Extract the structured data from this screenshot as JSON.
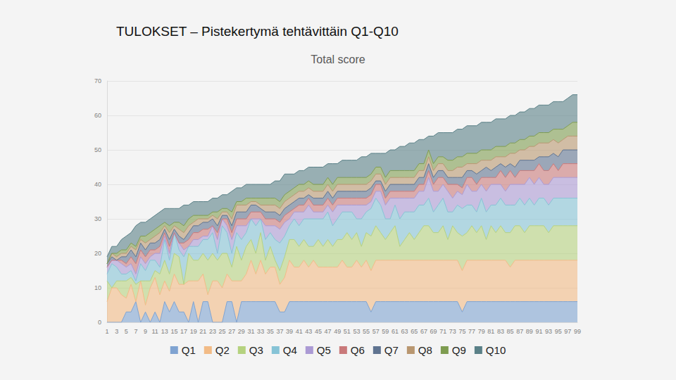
{
  "heading": "TULOKSET – Pistekertymä tehtävittäin Q1-Q10",
  "chart_data": {
    "type": "area",
    "title": "Total score",
    "stacked": true,
    "grid": true,
    "legend": "bottom",
    "categories": [
      "1",
      null,
      "3",
      null,
      "5",
      null,
      "7",
      null,
      "9",
      null,
      "11",
      null,
      "13",
      null,
      "15",
      null,
      "17",
      null,
      "19",
      null,
      "21",
      null,
      "23",
      null,
      "25",
      null,
      "27",
      null,
      "29",
      null,
      "31",
      null,
      "33",
      null,
      "35",
      null,
      "37",
      null,
      "39",
      null,
      "41",
      null,
      "43",
      null,
      "45",
      null,
      "47",
      null,
      "49",
      null,
      "51",
      null,
      "53",
      null,
      "55",
      null,
      "57",
      null,
      "59",
      null,
      "61",
      null,
      "63",
      null,
      "65",
      null,
      "67",
      null,
      "69",
      null,
      "71",
      null,
      "73",
      null,
      "75",
      null,
      "77",
      null,
      "79",
      null,
      "81",
      null,
      "83",
      null,
      "85",
      null,
      "87",
      null,
      "89",
      null,
      "91",
      null,
      "93",
      null,
      "95",
      null,
      "97",
      null,
      "99"
    ],
    "ylim": [
      0,
      70
    ],
    "yticks": [
      0,
      10,
      20,
      30,
      40,
      50,
      60,
      70
    ],
    "series": [
      {
        "name": "Q1",
        "color": "#7fa3d1",
        "values": [
          0,
          0,
          0,
          0,
          3,
          3,
          6,
          0,
          3,
          0,
          3,
          0,
          6,
          3,
          6,
          3,
          3,
          0,
          6,
          0,
          6,
          6,
          0,
          0,
          0,
          6,
          6,
          0,
          6,
          6,
          6,
          6,
          6,
          6,
          6,
          6,
          3,
          3,
          6,
          6,
          6,
          6,
          6,
          6,
          6,
          6,
          6,
          6,
          6,
          6,
          6,
          6,
          6,
          6,
          6,
          3,
          6,
          6,
          6,
          6,
          6,
          6,
          6,
          6,
          6,
          6,
          6,
          6,
          6,
          6,
          6,
          6,
          6,
          6,
          3,
          6,
          6,
          6,
          6,
          6,
          6,
          6,
          6,
          6,
          6,
          6,
          6,
          6,
          6,
          6,
          6,
          6,
          6,
          6,
          6,
          6,
          6,
          6,
          6
        ]
      },
      {
        "name": "Q2",
        "color": "#f2bb86",
        "values": [
          6,
          10,
          10,
          8,
          4,
          8,
          0,
          12,
          2,
          10,
          10,
          8,
          6,
          6,
          8,
          8,
          8,
          12,
          6,
          12,
          8,
          2,
          12,
          12,
          10,
          8,
          6,
          12,
          6,
          8,
          12,
          8,
          12,
          8,
          10,
          10,
          8,
          10,
          12,
          10,
          10,
          12,
          10,
          12,
          10,
          10,
          10,
          10,
          10,
          12,
          10,
          10,
          12,
          10,
          12,
          12,
          12,
          12,
          12,
          12,
          12,
          12,
          12,
          12,
          12,
          12,
          12,
          12,
          12,
          12,
          12,
          12,
          12,
          12,
          12,
          12,
          12,
          12,
          12,
          12,
          12,
          12,
          12,
          12,
          10,
          12,
          12,
          12,
          12,
          12,
          12,
          12,
          12,
          12,
          12,
          12,
          12,
          12,
          12
        ]
      },
      {
        "name": "Q3",
        "color": "#b5d27f",
        "values": [
          6,
          0,
          2,
          4,
          5,
          2,
          5,
          0,
          7,
          2,
          2,
          6,
          6,
          5,
          6,
          8,
          0,
          8,
          6,
          6,
          6,
          10,
          8,
          6,
          10,
          6,
          4,
          10,
          6,
          8,
          6,
          6,
          8,
          4,
          6,
          2,
          4,
          6,
          6,
          8,
          6,
          6,
          6,
          4,
          8,
          6,
          8,
          6,
          8,
          6,
          10,
          8,
          8,
          6,
          8,
          10,
          10,
          8,
          6,
          8,
          10,
          4,
          6,
          8,
          6,
          8,
          10,
          10,
          8,
          8,
          10,
          6,
          10,
          8,
          10,
          8,
          10,
          8,
          10,
          6,
          10,
          8,
          10,
          8,
          10,
          10,
          10,
          8,
          10,
          10,
          10,
          10,
          8,
          10,
          10,
          10,
          10,
          10,
          10
        ]
      },
      {
        "name": "Q4",
        "color": "#86c3d6",
        "values": [
          2,
          7,
          4,
          2,
          2,
          2,
          1,
          5,
          3,
          6,
          3,
          2,
          6,
          4,
          6,
          2,
          8,
          2,
          4,
          4,
          4,
          6,
          6,
          2,
          8,
          6,
          4,
          4,
          6,
          4,
          6,
          8,
          4,
          6,
          4,
          6,
          8,
          6,
          4,
          6,
          6,
          6,
          8,
          8,
          6,
          8,
          8,
          6,
          6,
          8,
          6,
          8,
          4,
          8,
          6,
          8,
          8,
          8,
          6,
          4,
          6,
          8,
          8,
          6,
          8,
          8,
          6,
          8,
          6,
          8,
          8,
          8,
          4,
          8,
          8,
          8,
          6,
          6,
          8,
          8,
          6,
          8,
          8,
          8,
          8,
          6,
          8,
          8,
          8,
          6,
          8,
          8,
          8,
          8,
          8,
          8,
          8,
          8,
          8
        ]
      },
      {
        "name": "Q5",
        "color": "#ab9ad4",
        "values": [
          2,
          1,
          2,
          3,
          2,
          2,
          2,
          2,
          2,
          1,
          2,
          4,
          1,
          2,
          0,
          2,
          2,
          0,
          2,
          2,
          1,
          1,
          2,
          4,
          2,
          2,
          4,
          2,
          4,
          2,
          0,
          2,
          0,
          4,
          2,
          4,
          4,
          4,
          2,
          2,
          4,
          2,
          4,
          2,
          2,
          2,
          2,
          4,
          4,
          2,
          2,
          2,
          4,
          4,
          2,
          2,
          2,
          4,
          4,
          6,
          2,
          6,
          4,
          4,
          4,
          4,
          4,
          6,
          6,
          4,
          4,
          6,
          4,
          4,
          4,
          6,
          4,
          6,
          4,
          6,
          6,
          6,
          4,
          4,
          6,
          6,
          4,
          6,
          6,
          6,
          6,
          4,
          6,
          6,
          6,
          6,
          6,
          6,
          6
        ]
      },
      {
        "name": "Q6",
        "color": "#c9797a",
        "values": [
          0,
          0,
          0,
          1,
          1,
          2,
          3,
          2,
          2,
          2,
          1,
          2,
          1,
          2,
          0,
          0,
          2,
          2,
          2,
          2,
          2,
          2,
          0,
          2,
          0,
          2,
          2,
          2,
          2,
          2,
          2,
          2,
          2,
          2,
          2,
          2,
          2,
          2,
          2,
          1,
          2,
          2,
          2,
          2,
          2,
          2,
          2,
          2,
          2,
          2,
          2,
          2,
          2,
          2,
          2,
          2,
          2,
          2,
          2,
          2,
          2,
          2,
          2,
          2,
          2,
          2,
          2,
          2,
          2,
          4,
          2,
          2,
          4,
          2,
          2,
          2,
          4,
          2,
          2,
          4,
          2,
          2,
          4,
          4,
          4,
          2,
          4,
          4,
          2,
          4,
          4,
          4,
          4,
          4,
          2,
          4,
          4,
          4,
          4
        ]
      },
      {
        "name": "Q7",
        "color": "#5f7390",
        "values": [
          1,
          1,
          0,
          1,
          2,
          2,
          2,
          2,
          2,
          2,
          2,
          2,
          1,
          2,
          1,
          2,
          1,
          2,
          2,
          2,
          2,
          2,
          2,
          2,
          1,
          1,
          2,
          2,
          2,
          2,
          2,
          2,
          1,
          2,
          2,
          2,
          2,
          2,
          2,
          2,
          2,
          2,
          1,
          2,
          2,
          2,
          2,
          2,
          2,
          2,
          2,
          2,
          2,
          2,
          2,
          2,
          1,
          1,
          2,
          2,
          2,
          2,
          2,
          2,
          2,
          2,
          2,
          2,
          2,
          2,
          2,
          2,
          2,
          2,
          3,
          2,
          2,
          3,
          2,
          3,
          2,
          3,
          2,
          3,
          2,
          3,
          3,
          3,
          3,
          3,
          2,
          4,
          4,
          3,
          4,
          4,
          4,
          4,
          4
        ]
      },
      {
        "name": "Q8",
        "color": "#b99770",
        "values": [
          0,
          1,
          1,
          1,
          1,
          1,
          2,
          1,
          2,
          1,
          2,
          2,
          1,
          2,
          1,
          2,
          2,
          2,
          1,
          2,
          1,
          1,
          1,
          2,
          1,
          1,
          2,
          2,
          2,
          2,
          1,
          1,
          1,
          2,
          2,
          2,
          2,
          2,
          2,
          2,
          2,
          2,
          2,
          2,
          2,
          2,
          2,
          2,
          2,
          2,
          2,
          2,
          2,
          2,
          2,
          2,
          2,
          2,
          2,
          2,
          2,
          2,
          2,
          2,
          2,
          2,
          2,
          2,
          2,
          2,
          2,
          2,
          2,
          3,
          3,
          2,
          2,
          3,
          3,
          2,
          3,
          3,
          2,
          3,
          3,
          4,
          3,
          3,
          4,
          4,
          4,
          4,
          4,
          4,
          4,
          3,
          4,
          4,
          4
        ]
      },
      {
        "name": "Q9",
        "color": "#7e9c50",
        "values": [
          0,
          0,
          1,
          1,
          1,
          1,
          1,
          1,
          2,
          2,
          2,
          2,
          1,
          2,
          1,
          2,
          2,
          2,
          2,
          1,
          1,
          1,
          1,
          2,
          1,
          1,
          2,
          1,
          1,
          2,
          1,
          1,
          2,
          2,
          2,
          2,
          2,
          2,
          2,
          2,
          2,
          2,
          2,
          2,
          2,
          2,
          2,
          2,
          2,
          2,
          2,
          2,
          2,
          2,
          2,
          2,
          2,
          2,
          2,
          2,
          2,
          2,
          2,
          2,
          2,
          2,
          2,
          2,
          2,
          2,
          2,
          3,
          3,
          3,
          3,
          3,
          3,
          3,
          3,
          3,
          3,
          3,
          3,
          3,
          3,
          3,
          3,
          3,
          3,
          3,
          3,
          3,
          3,
          3,
          4,
          3,
          3,
          4,
          4
        ]
      },
      {
        "name": "Q10",
        "color": "#5a8087",
        "values": [
          2,
          2,
          2,
          3,
          4,
          3,
          6,
          4,
          4,
          4,
          4,
          4,
          4,
          5,
          4,
          4,
          6,
          4,
          4,
          4,
          4,
          4,
          4,
          4,
          4,
          4,
          6,
          4,
          4,
          4,
          4,
          4,
          4,
          4,
          4,
          5,
          6,
          6,
          5,
          4,
          4,
          4,
          4,
          5,
          5,
          5,
          4,
          6,
          4,
          5,
          5,
          5,
          5,
          6,
          6,
          6,
          4,
          4,
          7,
          6,
          6,
          7,
          7,
          8,
          8,
          7,
          7,
          4,
          8,
          7,
          7,
          8,
          8,
          8,
          8,
          8,
          8,
          8,
          8,
          8,
          8,
          8,
          8,
          8,
          8,
          8,
          8,
          8,
          8,
          8,
          8,
          8,
          8,
          8,
          8,
          8,
          8,
          8,
          8
        ]
      }
    ]
  }
}
